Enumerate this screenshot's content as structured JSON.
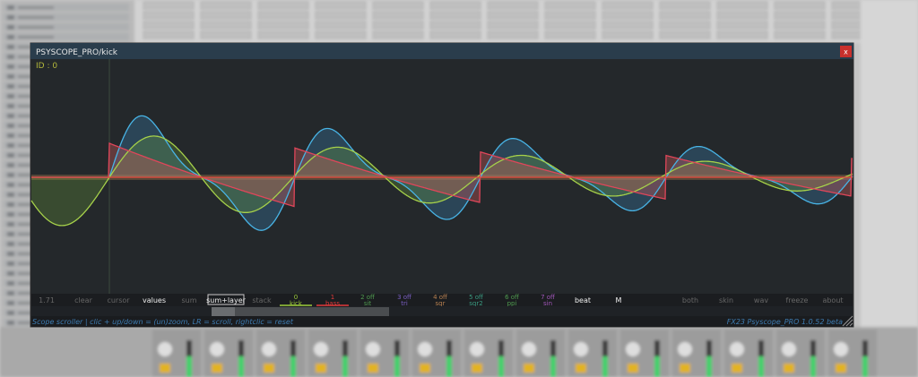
{
  "window": {
    "title": "PSYSCOPE_PRO/kick",
    "close": "x",
    "id_label": "ID : 0"
  },
  "toolbar": {
    "left": [
      "1.71",
      "clear",
      "cursor",
      "values",
      "sum",
      "sum+layer",
      "stack"
    ],
    "layers": [
      {
        "top": "0",
        "bottom": "kick"
      },
      {
        "top": "1",
        "bottom": "bass"
      },
      {
        "top": "2 off",
        "bottom": "sit"
      },
      {
        "top": "3 off",
        "bottom": "tri"
      },
      {
        "top": "4 off",
        "bottom": "sqr"
      },
      {
        "top": "5 off",
        "bottom": "sqr2"
      },
      {
        "top": "6 off",
        "bottom": "ppi"
      },
      {
        "top": "7 off",
        "bottom": "sin"
      }
    ],
    "right": [
      "beat",
      "M",
      "both",
      "skin",
      "wav",
      "freeze",
      "about"
    ]
  },
  "status": {
    "help": "Scope scroller | clic + up/down = (un)zoom, LR = scroll, rightclic = reset",
    "version": "FX23 Psyscope_PRO 1.0.52 beta"
  }
}
